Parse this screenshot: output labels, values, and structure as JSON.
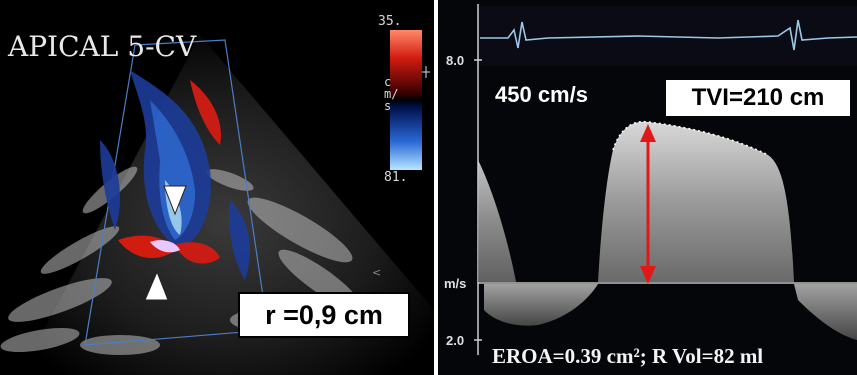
{
  "left_panel": {
    "view_label": "APICAL 5-CV",
    "color_scale": {
      "top_value": "35.",
      "bottom_value": "81.",
      "unit": "cm/s"
    },
    "radius_label": "r =0,9 cm"
  },
  "right_panel": {
    "tick_top": "8.0",
    "tick_mid": "m/s",
    "tick_bottom": "2.0",
    "peak_velocity": "450 cm/s",
    "tvi": "TVI=210 cm",
    "summary": "EROA=0.39 cm²; R Vol=82 ml"
  }
}
